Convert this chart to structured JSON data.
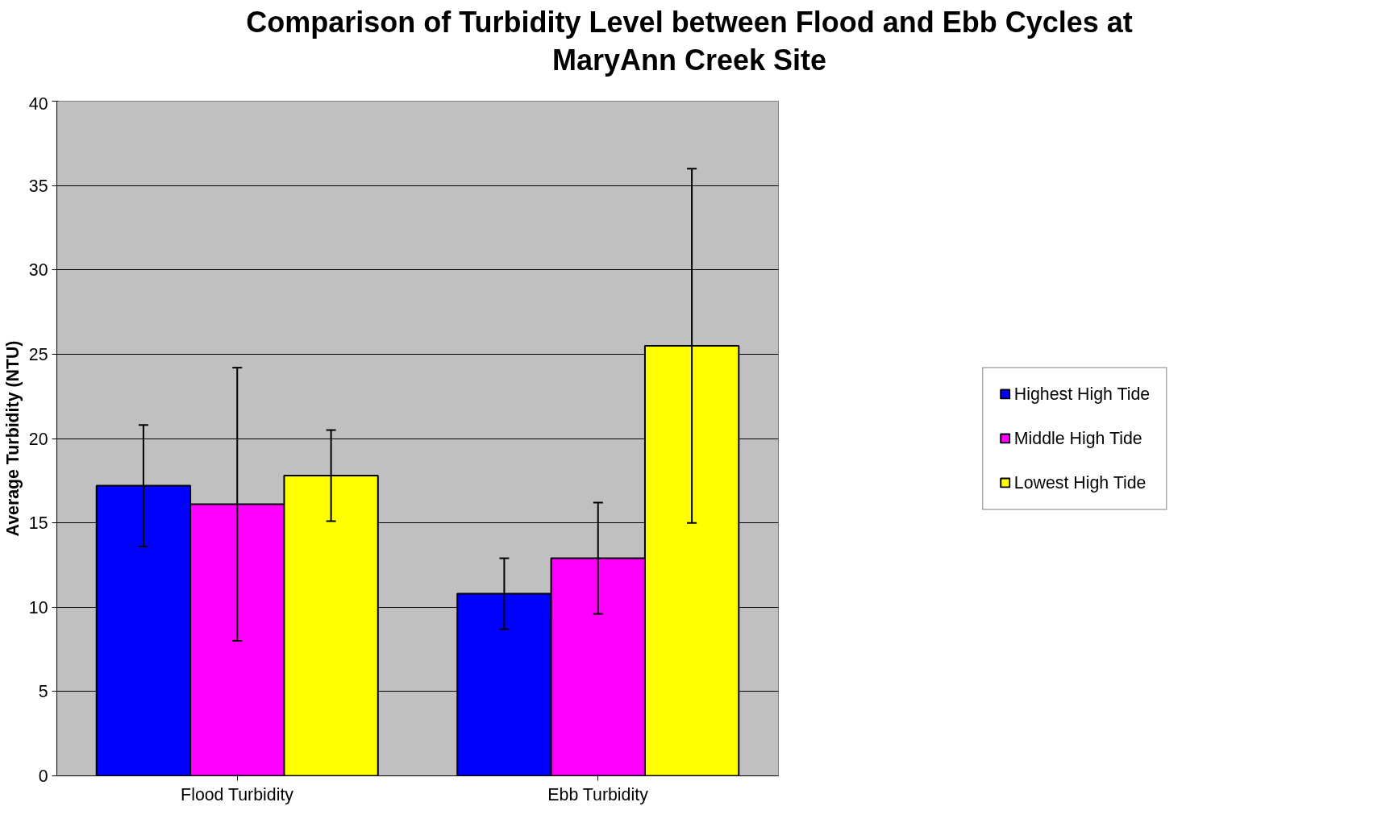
{
  "chart_data": {
    "type": "bar",
    "title": "Comparison of Turbidity Level between Flood and Ebb Cycles at\nMaryAnn Creek Site",
    "ylabel": "Average Turbidity (NTU)",
    "categories": [
      "Flood Turbidity",
      "Ebb Turbidity"
    ],
    "series": [
      {
        "name": "Highest High Tide",
        "color": "#0000ff",
        "values": [
          17.2,
          10.8
        ],
        "errors": [
          3.6,
          2.1
        ]
      },
      {
        "name": "Middle High Tide",
        "color": "#ff00ff",
        "values": [
          16.1,
          12.9
        ],
        "errors": [
          8.1,
          3.3
        ]
      },
      {
        "name": "Lowest High Tide",
        "color": "#ffff00",
        "values": [
          17.8,
          25.5
        ],
        "errors": [
          2.7,
          10.5
        ]
      }
    ],
    "ylim": [
      0,
      40
    ],
    "yticks": [
      0,
      5,
      10,
      15,
      20,
      25,
      30,
      35,
      40
    ],
    "grid": "y",
    "legend": "right"
  }
}
